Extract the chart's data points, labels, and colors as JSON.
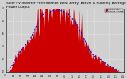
{
  "title": "Solar PV/Inverter Performance West Array  Actual & Running Average Power Output",
  "title_fontsize": 3.2,
  "bg_color": "#d0d0d0",
  "plot_bg_color": "#d0d0d0",
  "grid_color": "#ffffff",
  "bar_color": "#cc0000",
  "avg_color": "#0000ff",
  "num_points": 200,
  "ylim": [
    0,
    1.0
  ],
  "xlim": [
    0,
    200
  ],
  "legend_actual": "Actual Output",
  "legend_avg": "Running Average"
}
